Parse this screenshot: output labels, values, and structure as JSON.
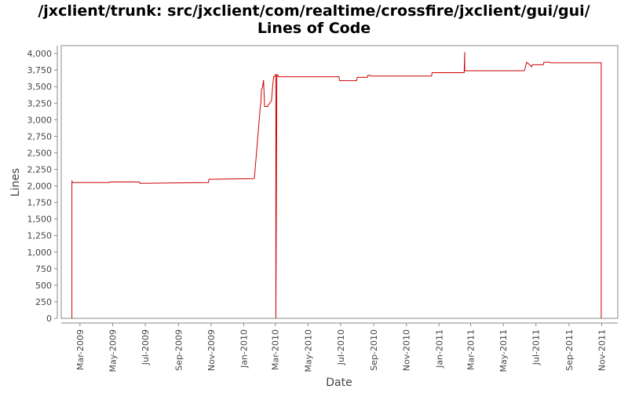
{
  "chart_data": {
    "type": "line",
    "title": "/jxclient/trunk: src/jxclient/com/realtime/crossfire/jxclient/gui/gui/",
    "subtitle": "Lines of Code",
    "xlabel": "Date",
    "ylabel": "Lines",
    "x_tick_labels": [
      "Mar-2009",
      "May-2009",
      "Jul-2009",
      "Sep-2009",
      "Nov-2009",
      "Jan-2010",
      "Mar-2010",
      "May-2010",
      "Jul-2010",
      "Sep-2010",
      "Nov-2010",
      "Jan-2011",
      "Mar-2011",
      "May-2011",
      "Jul-2011",
      "Sep-2011",
      "Nov-2011"
    ],
    "y_tick_labels": [
      "0",
      "250",
      "500",
      "750",
      "1,000",
      "1,250",
      "1,500",
      "1,750",
      "2,000",
      "2,250",
      "2,500",
      "2,750",
      "3,000",
      "3,250",
      "3,500",
      "3,750",
      "4,000"
    ],
    "xlim": [
      "2009-01-25",
      "2011-12-01"
    ],
    "ylim": [
      0,
      4120
    ],
    "grid": false,
    "line_color": "#cc0000",
    "series": [
      {
        "x": [
          "2009-02-14",
          "2009-02-14",
          "2009-02-15",
          "2009-04-25",
          "2009-04-26",
          "2009-06-20",
          "2009-06-21",
          "2009-10-27",
          "2009-10-28",
          "2010-01-20",
          "2010-01-21",
          "2010-02-01",
          "2010-02-02",
          "2010-02-03",
          "2010-02-05",
          "2010-02-07",
          "2010-02-09",
          "2010-02-12",
          "2010-02-15",
          "2010-02-15",
          "2010-02-22",
          "2010-02-24",
          "2010-02-26",
          "2010-02-27",
          "2010-03-01",
          "2010-03-02",
          "2010-03-02",
          "2010-03-04",
          "2010-03-04",
          "2010-03-06",
          "2010-03-06",
          "2010-03-08",
          "2010-06-28",
          "2010-06-29",
          "2010-07-31",
          "2010-08-01",
          "2010-08-20",
          "2010-08-21",
          "2010-08-25",
          "2010-08-26",
          "2010-12-18",
          "2010-12-19",
          "2011-02-17",
          "2011-02-18",
          "2011-02-18",
          "2011-02-19",
          "2011-06-09",
          "2011-06-10",
          "2011-06-12",
          "2011-06-14",
          "2011-06-23",
          "2011-06-24",
          "2011-07-15",
          "2011-07-16",
          "2011-07-27",
          "2011-07-28",
          "2011-10-31",
          "2011-10-31"
        ],
        "y": [
          0,
          2080,
          2050,
          2050,
          2060,
          2060,
          2040,
          2050,
          2100,
          2110,
          2120,
          3200,
          3250,
          3450,
          3480,
          3600,
          3200,
          3200,
          3200,
          3210,
          3290,
          3500,
          3650,
          3650,
          3680,
          3680,
          0,
          3660,
          3680,
          3680,
          3650,
          3650,
          3650,
          3590,
          3590,
          3640,
          3640,
          3670,
          3670,
          3660,
          3660,
          3710,
          3710,
          4020,
          3740,
          3740,
          3740,
          3750,
          3820,
          3870,
          3800,
          3830,
          3830,
          3870,
          3870,
          3860,
          3860,
          0
        ]
      }
    ]
  }
}
